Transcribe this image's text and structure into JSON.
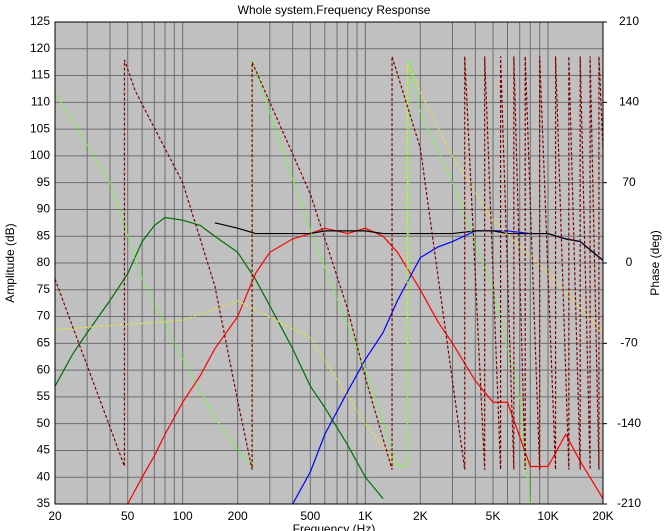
{
  "chart_data": {
    "type": "line",
    "title": "Whole system.Frequency Response",
    "x_label": "Frequency (Hz)",
    "y_label": "Amplitude (dB)",
    "y2_label": "Phase (deg)",
    "x_log": true,
    "grid": true,
    "xlim": [
      20,
      20000
    ],
    "xticks": [
      20,
      50,
      100,
      200,
      500,
      {
        "value": 1000,
        "label": "1K"
      },
      {
        "value": 2000,
        "label": "2K"
      },
      {
        "value": 5000,
        "label": "5K"
      },
      {
        "value": 10000,
        "label": "10K"
      },
      {
        "value": 20000,
        "label": "20K"
      }
    ],
    "x_minor_ticks": [
      30,
      40,
      60,
      70,
      80,
      90,
      300,
      400,
      600,
      700,
      800,
      900,
      3000,
      4000,
      6000,
      7000,
      8000,
      9000
    ],
    "ylim": [
      35,
      125
    ],
    "yticks": [
      35,
      40,
      45,
      50,
      55,
      60,
      65,
      70,
      75,
      80,
      85,
      90,
      95,
      100,
      105,
      110,
      115,
      120,
      125
    ],
    "y2lim": [
      -210,
      210
    ],
    "y2ticks": [
      -210,
      -140,
      -70,
      0,
      70,
      140,
      210
    ],
    "x": [
      20,
      25,
      30,
      40,
      50,
      60,
      70,
      80,
      100,
      125,
      150,
      200,
      250,
      300,
      400,
      500,
      600,
      800,
      1000,
      1250,
      1500,
      2000,
      2500,
      3000,
      4000,
      5000,
      6000,
      8000,
      10000,
      12500,
      15000,
      20000
    ],
    "series": [
      {
        "color": "#007000",
        "values": [
          57,
          63,
          67,
          73,
          78,
          84,
          87,
          88.5,
          88,
          87,
          85,
          82,
          77,
          72,
          64,
          57,
          53,
          46,
          40,
          36,
          null,
          null,
          null,
          null,
          null,
          null,
          null,
          null,
          null,
          null,
          null,
          null
        ]
      },
      {
        "color": "#ff0000",
        "values": [
          null,
          null,
          null,
          null,
          35,
          40,
          44,
          48,
          54,
          59,
          64,
          70,
          78,
          82,
          84.5,
          85.5,
          86.5,
          85.5,
          86.5,
          85,
          82,
          75,
          69,
          65,
          58,
          54,
          54,
          42,
          42,
          48,
          43,
          36
        ]
      },
      {
        "color": "#0000ff",
        "values": [
          null,
          null,
          null,
          null,
          null,
          null,
          null,
          null,
          null,
          null,
          null,
          null,
          null,
          null,
          35,
          41,
          48,
          56,
          62,
          67,
          73,
          81,
          83,
          84,
          86,
          86,
          86,
          85.5,
          85.5,
          84.5,
          84,
          80.5
        ]
      },
      {
        "color": "#000000",
        "values": [
          null,
          null,
          null,
          null,
          null,
          null,
          null,
          null,
          null,
          null,
          87.5,
          86.5,
          85.5,
          85.5,
          85.5,
          85.5,
          86,
          86,
          86,
          85.5,
          85.5,
          85.5,
          85.5,
          85.5,
          86,
          86,
          85.5,
          85.5,
          85.5,
          84.5,
          84,
          80.5
        ]
      },
      {
        "color": "#e0e040",
        "axis": "y2",
        "dash": true,
        "x": [
          20,
          100,
          200,
          500,
          1000,
          1500,
          1700,
          1700,
          2000,
          3000,
          5000,
          10000,
          20000
        ],
        "values": [
          -58,
          -50,
          -33,
          -65,
          -140,
          -177,
          -177,
          173,
          149,
          93,
          37,
          -9,
          -60
        ]
      },
      {
        "color": "#66ff33",
        "axis": "y2",
        "dash": true,
        "x": [
          20,
          40,
          60,
          100,
          150,
          200,
          240,
          240,
          300,
          500,
          1000,
          1500,
          1700,
          1750,
          2000,
          3000,
          5000,
          7000,
          8000
        ],
        "values": [
          149,
          70,
          -14,
          -84,
          -135,
          -163,
          -177,
          177,
          131,
          28,
          -93,
          -177,
          -177,
          177,
          131,
          70,
          -23,
          -117,
          -210
        ]
      },
      {
        "color": "#800000",
        "axis": "y2",
        "dash": true,
        "x": [
          20,
          48,
          48,
          55,
          100,
          150,
          200,
          240,
          240,
          300,
          500,
          800,
          1000,
          1400,
          1400,
          2000,
          3500,
          3500,
          4500,
          4500,
          5500,
          5500,
          6500,
          6500,
          7500,
          7500,
          9000,
          9000,
          11000,
          11000,
          13000,
          13000,
          15000,
          15000,
          17000,
          17000,
          19000,
          19000,
          20000
        ],
        "values": [
          -14,
          -177,
          177,
          150,
          70,
          -20,
          -120,
          -180,
          175,
          140,
          60,
          -40,
          -100,
          -180,
          180,
          100,
          -180,
          180,
          -180,
          180,
          -180,
          180,
          -180,
          180,
          -180,
          180,
          -180,
          180,
          -180,
          180,
          -180,
          180,
          -180,
          180,
          -180,
          180,
          -180,
          180,
          100
        ]
      }
    ]
  }
}
